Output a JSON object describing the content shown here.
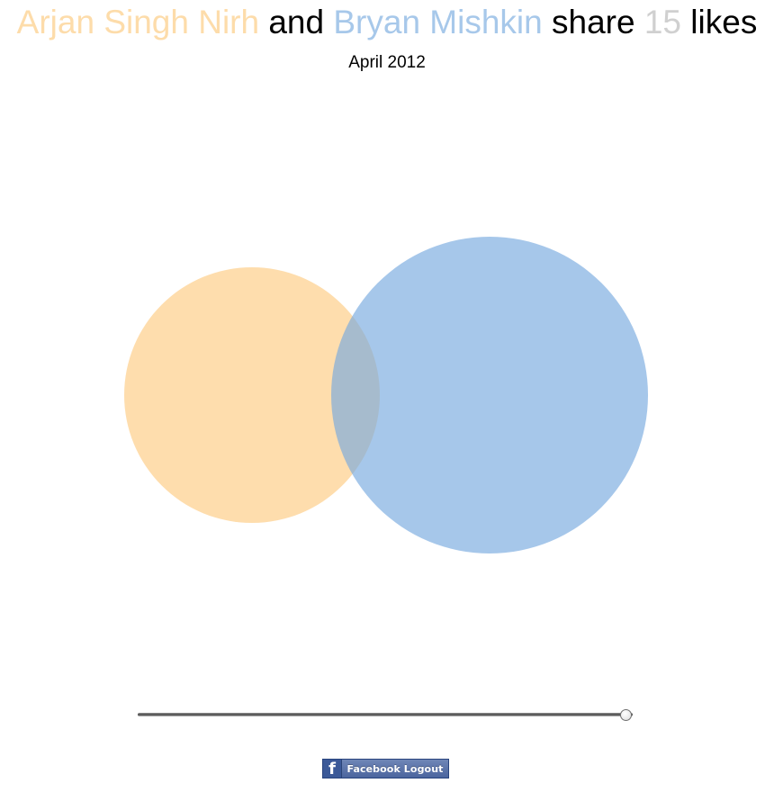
{
  "header": {
    "person1": "Arjan Singh Nirh",
    "connector": "and",
    "person2": "Bryan Mishkin",
    "verb": "share",
    "count": "15",
    "noun": "likes"
  },
  "date_label": "April 2012",
  "colors": {
    "person1": "#fddcaa",
    "person2": "#a7c8ea",
    "count": "#d0d0d0",
    "text": "#000000"
  },
  "venn": {
    "circle1_label": "Arjan Singh Nirh",
    "circle2_label": "Bryan Mishkin"
  },
  "timeline": {
    "value_fraction": 0.985
  },
  "facebook": {
    "logo_glyph": "f",
    "logout_label": "Facebook Logout"
  }
}
